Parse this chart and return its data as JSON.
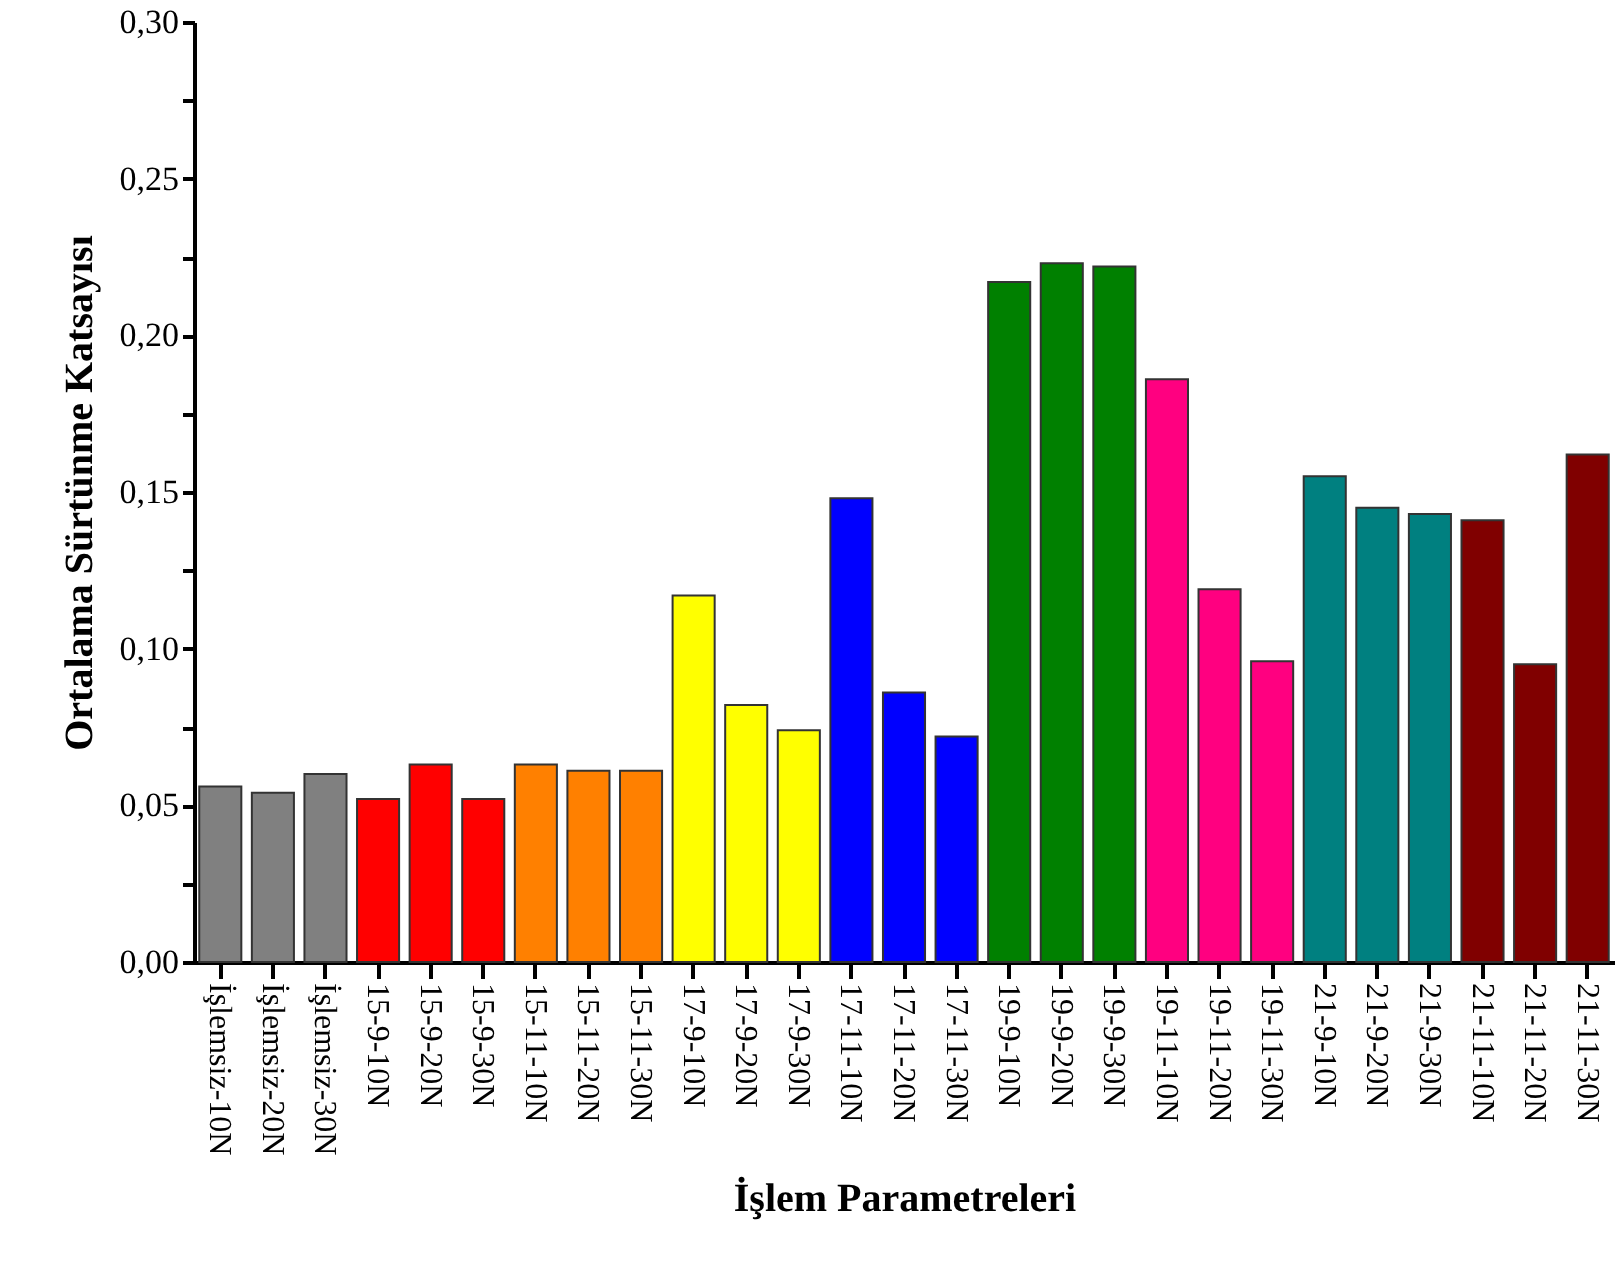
{
  "chart_data": {
    "type": "bar",
    "xlabel": "İşlem Parametreleri",
    "ylabel": "Ortalama Sürtünme Katsayısı",
    "categories": [
      "İşlemsiz-10N",
      "İşlemsiz-20N",
      "İşlemsiz-30N",
      "15-9-10N",
      "15-9-20N",
      "15-9-30N",
      "15-11-10N",
      "15-11-20N",
      "15-11-30N",
      "17-9-10N",
      "17-9-20N",
      "17-9-30N",
      "17-11-10N",
      "17-11-20N",
      "17-11-30N",
      "19-9-10N",
      "19-9-20N",
      "19-9-30N",
      "19-11-10N",
      "19-11-20N",
      "19-11-30N",
      "21-9-10N",
      "21-9-20N",
      "21-9-30N",
      "21-11-10N",
      "21-11-20N",
      "21-11-30N"
    ],
    "values": [
      0.056,
      0.054,
      0.06,
      0.052,
      0.063,
      0.052,
      0.063,
      0.061,
      0.061,
      0.117,
      0.082,
      0.074,
      0.148,
      0.086,
      0.072,
      0.217,
      0.223,
      0.222,
      0.186,
      0.119,
      0.096,
      0.155,
      0.145,
      0.143,
      0.141,
      0.095,
      0.162
    ],
    "colors": [
      "#808080",
      "#808080",
      "#808080",
      "#ff0000",
      "#ff0000",
      "#ff0000",
      "#ff8000",
      "#ff8000",
      "#ff8000",
      "#ffff00",
      "#ffff00",
      "#ffff00",
      "#0000ff",
      "#0000ff",
      "#0000ff",
      "#008000",
      "#008000",
      "#008000",
      "#ff0080",
      "#ff0080",
      "#ff0080",
      "#008080",
      "#008080",
      "#008080",
      "#800000",
      "#800000",
      "#800000"
    ],
    "ylim": [
      0,
      0.3
    ],
    "yticks": [
      {
        "value": 0,
        "label": "0,00"
      },
      {
        "value": 0.025,
        "label": null
      },
      {
        "value": 0.05,
        "label": "0,05"
      },
      {
        "value": 0.075,
        "label": null
      },
      {
        "value": 0.1,
        "label": "0,10"
      },
      {
        "value": 0.125,
        "label": null
      },
      {
        "value": 0.15,
        "label": "0,15"
      },
      {
        "value": 0.175,
        "label": null
      },
      {
        "value": 0.2,
        "label": "0,20"
      },
      {
        "value": 0.225,
        "label": null
      },
      {
        "value": 0.25,
        "label": "0,25"
      },
      {
        "value": 0.275,
        "label": null
      },
      {
        "value": 0.3,
        "label": "0,30"
      }
    ],
    "grid": false
  }
}
